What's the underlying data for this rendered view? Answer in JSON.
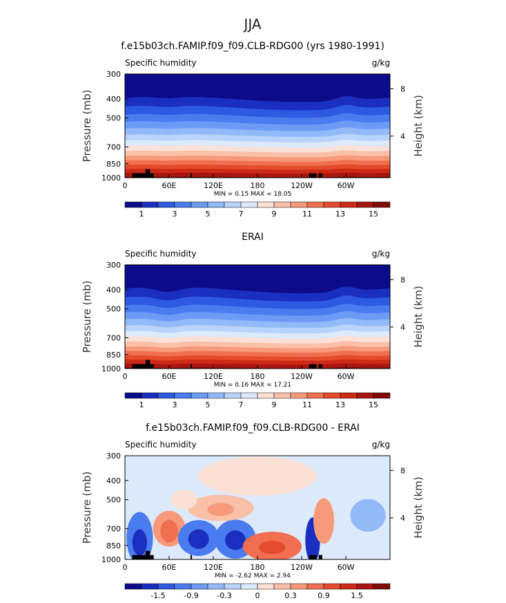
{
  "figure": {
    "title": "JJA"
  },
  "shared": {
    "left_label": "Specific humidity",
    "units": "g/kg",
    "ylabel": "Pressure (mb)",
    "y2label": "Height (km)",
    "pressure_ticks": [
      "300",
      "400",
      "500",
      "700",
      "850",
      "1000"
    ],
    "height_ticks": [
      "8",
      "4"
    ],
    "lon_ticks": [
      "0",
      "60E",
      "120E",
      "180",
      "120W",
      "60W"
    ]
  },
  "chart_data": [
    {
      "type": "heatmap",
      "title": "f.e15b03ch.FAMIP.f09_f09.CLB-RDG00 (yrs 1980-1991)",
      "left_label": "Specific humidity",
      "right_label": "g/kg",
      "xlabel": "",
      "ylabel": "Pressure (mb)",
      "y2label": "Height (km)",
      "x_ticks": [
        "0",
        "60E",
        "120E",
        "180",
        "120W",
        "60W"
      ],
      "y_ticks": [
        300,
        400,
        500,
        700,
        850,
        1000
      ],
      "y2_ticks": [
        8,
        4
      ],
      "stats_text": "MIN =     0.15   MAX =    18.05",
      "min": 0.15,
      "max": 18.05,
      "colorbar_labels": [
        "1",
        "3",
        "5",
        "7",
        "9",
        "11",
        "13",
        "15"
      ],
      "colorbar_colors": [
        "#0c0c8a",
        "#1a2fbf",
        "#2d5ae0",
        "#4a7bef",
        "#6b9bf5",
        "#92b9f8",
        "#b9d3fa",
        "#ddeafc",
        "#fbe0d6",
        "#f9bfa7",
        "#f69a7b",
        "#f06f50",
        "#e44a2c",
        "#cd2a17",
        "#a8160f",
        "#800b08"
      ],
      "panel_id": "model"
    },
    {
      "type": "heatmap",
      "title": "ERAI",
      "left_label": "Specific humidity",
      "right_label": "g/kg",
      "xlabel": "",
      "ylabel": "Pressure (mb)",
      "y2label": "Height (km)",
      "x_ticks": [
        "0",
        "60E",
        "120E",
        "180",
        "120W",
        "60W"
      ],
      "y_ticks": [
        300,
        400,
        500,
        700,
        850,
        1000
      ],
      "y2_ticks": [
        8,
        4
      ],
      "stats_text": "MIN =     0.16   MAX =    17.21",
      "min": 0.16,
      "max": 17.21,
      "colorbar_labels": [
        "1",
        "3",
        "5",
        "7",
        "9",
        "11",
        "13",
        "15"
      ],
      "colorbar_colors": [
        "#0c0c8a",
        "#1a2fbf",
        "#2d5ae0",
        "#4a7bef",
        "#6b9bf5",
        "#92b9f8",
        "#b9d3fa",
        "#ddeafc",
        "#fbe0d6",
        "#f9bfa7",
        "#f69a7b",
        "#f06f50",
        "#e44a2c",
        "#cd2a17",
        "#a8160f",
        "#800b08"
      ],
      "panel_id": "obs"
    },
    {
      "type": "heatmap",
      "title": "f.e15b03ch.FAMIP.f09_f09.CLB-RDG00 - ERAI",
      "left_label": "Specific humidity",
      "right_label": "g/kg",
      "xlabel": "",
      "ylabel": "Pressure (mb)",
      "y2label": "Height (km)",
      "x_ticks": [
        "0",
        "60E",
        "120E",
        "180",
        "120W",
        "60W"
      ],
      "y_ticks": [
        300,
        400,
        500,
        700,
        850,
        1000
      ],
      "y2_ticks": [
        8,
        4
      ],
      "stats_text": "MIN =    -2.62   MAX =     2.94",
      "min": -2.62,
      "max": 2.94,
      "colorbar_labels": [
        "-1.5",
        "-0.9",
        "-0.3",
        "0",
        "0.3",
        "0.9",
        "1.5"
      ],
      "colorbar_colors": [
        "#0c0c8a",
        "#1a2fbf",
        "#2d5ae0",
        "#4a7bef",
        "#6b9bf5",
        "#92b9f8",
        "#b9d3fa",
        "#ddeafc",
        "#fbe0d6",
        "#f9bfa7",
        "#f69a7b",
        "#f06f50",
        "#e44a2c",
        "#cd2a17",
        "#a8160f",
        "#800b08"
      ],
      "panel_id": "diff"
    }
  ]
}
